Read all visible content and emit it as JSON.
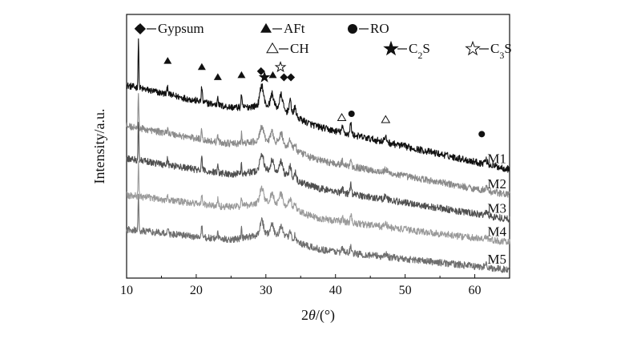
{
  "chart_data": {
    "type": "line",
    "title": "",
    "xlabel": "2θ/(°)",
    "xlabel_prefix": "2",
    "xlabel_italic": "θ",
    "xlabel_suffix": "/(°)",
    "ylabel": "Intensity/a.u.",
    "xlim": [
      10,
      65
    ],
    "xticks": [
      10,
      20,
      30,
      40,
      50,
      60
    ],
    "yticks_shown": false,
    "series": [
      {
        "name": "M1",
        "color": "#111111",
        "baseline_start": 4.75,
        "baseline_end": 2.68
      },
      {
        "name": "M2",
        "color": "#8a8a8a",
        "baseline_start": 3.75,
        "baseline_end": 2.05
      },
      {
        "name": "M3",
        "color": "#4f4f4f",
        "baseline_start": 2.95,
        "baseline_end": 1.45
      },
      {
        "name": "M4",
        "color": "#9a9a9a",
        "baseline_start": 2.05,
        "baseline_end": 0.88
      },
      {
        "name": "M5",
        "color": "#6e6e6e",
        "baseline_start": 1.2,
        "baseline_end": 0.2
      }
    ],
    "peaks": [
      {
        "x": 11.7,
        "h": 1.2,
        "w": 0.08,
        "phase": "Gypsum"
      },
      {
        "x": 15.9,
        "h": 0.2,
        "w": 0.12,
        "phase": "AFt"
      },
      {
        "x": 20.8,
        "h": 0.38,
        "w": 0.1,
        "phase": "AFt"
      },
      {
        "x": 23.1,
        "h": 0.25,
        "w": 0.1,
        "phase": "AFt"
      },
      {
        "x": 26.5,
        "h": 0.35,
        "w": 0.09,
        "phase": "AFt"
      },
      {
        "x": 29.4,
        "h": 0.5,
        "w": 0.35,
        "phase": "C3S / Gypsum"
      },
      {
        "x": 30.9,
        "h": 0.3,
        "w": 0.3,
        "phase": "AFt"
      },
      {
        "x": 32.2,
        "h": 0.35,
        "w": 0.3,
        "phase": "C2S"
      },
      {
        "x": 33.5,
        "h": 0.3,
        "w": 0.25,
        "phase": "Gypsum"
      },
      {
        "x": 34.2,
        "h": 0.22,
        "w": 0.2,
        "phase": "Gypsum"
      },
      {
        "x": 41.0,
        "h": 0.12,
        "w": 0.2,
        "phase": "CH"
      },
      {
        "x": 42.2,
        "h": 0.28,
        "w": 0.15,
        "phase": "RO"
      },
      {
        "x": 47.2,
        "h": 0.1,
        "w": 0.3,
        "phase": "CH"
      },
      {
        "x": 61.6,
        "h": 0.1,
        "w": 0.3,
        "phase": "RO"
      }
    ],
    "phase_markers": [
      {
        "x": 11.7,
        "symbol": "diamond",
        "level": 6.15
      },
      {
        "x": 15.9,
        "symbol": "triangle",
        "level": 5.35
      },
      {
        "x": 20.8,
        "symbol": "triangle",
        "level": 5.2
      },
      {
        "x": 23.1,
        "symbol": "triangle",
        "level": 4.95
      },
      {
        "x": 26.5,
        "symbol": "triangle",
        "level": 5.0
      },
      {
        "x": 29.3,
        "symbol": "diamond",
        "level": 5.1
      },
      {
        "x": 29.8,
        "symbol": "star",
        "level": 4.95
      },
      {
        "x": 31.0,
        "symbol": "triangle",
        "level": 5.0
      },
      {
        "x": 32.1,
        "symbol": "star-open",
        "level": 5.2
      },
      {
        "x": 32.6,
        "symbol": "diamond",
        "level": 4.95
      },
      {
        "x": 33.6,
        "symbol": "diamond",
        "level": 4.95
      },
      {
        "x": 40.9,
        "symbol": "triangle-open",
        "level": 3.95
      },
      {
        "x": 42.3,
        "symbol": "circle",
        "level": 4.05
      },
      {
        "x": 47.2,
        "symbol": "triangle-open",
        "level": 3.9
      },
      {
        "x": 61.0,
        "symbol": "circle",
        "level": 3.55
      }
    ],
    "legend": {
      "placement": "top",
      "entries": [
        {
          "symbol": "diamond",
          "label": "Gypsum"
        },
        {
          "symbol": "triangle",
          "label": "AFt"
        },
        {
          "symbol": "circle",
          "label": "RO"
        },
        {
          "symbol": "triangle-open",
          "label": "CH"
        },
        {
          "symbol": "star",
          "label": "C2S",
          "label_main": "C",
          "label_sub": "2",
          "label_tail": "S"
        },
        {
          "symbol": "star-open",
          "label": "C3S",
          "label_main": "C",
          "label_sub": "3",
          "label_tail": "S"
        }
      ]
    }
  }
}
